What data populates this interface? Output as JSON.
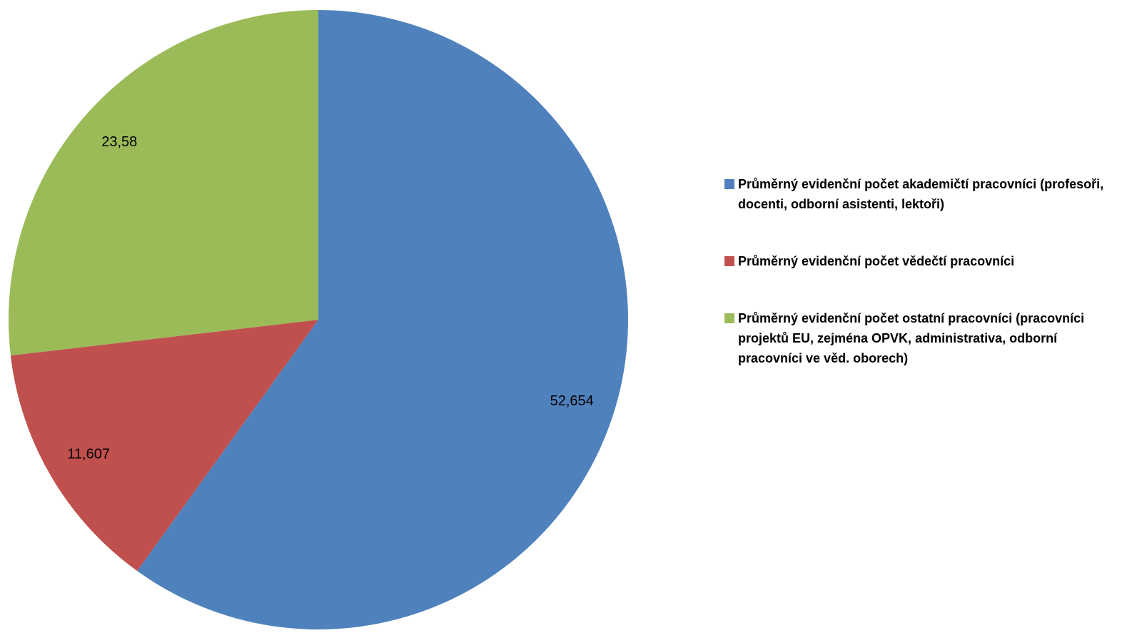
{
  "chart_data": {
    "type": "pie",
    "series": [
      {
        "name": "Průměrný evidenční počet akademičtí pracovníci (profesoři, docenti, odborní asistenti, lektoři)",
        "color": "#4f81bd"
      },
      {
        "name": "Průměrný evidenční počet vědečtí pracovníci",
        "color": "#c0504d"
      },
      {
        "name": "Průměrný evidenční počet ostatní pracovníci (pracovníci projektů EU, zejména OPVK, administrativa, odborní  pracovníci ve věd. oborech)",
        "color": "#9bbb59"
      }
    ],
    "values": [
      52.654,
      11.607,
      23.58
    ],
    "value_labels": [
      "52,654",
      "11,607",
      "23,58"
    ],
    "legend": "right"
  }
}
